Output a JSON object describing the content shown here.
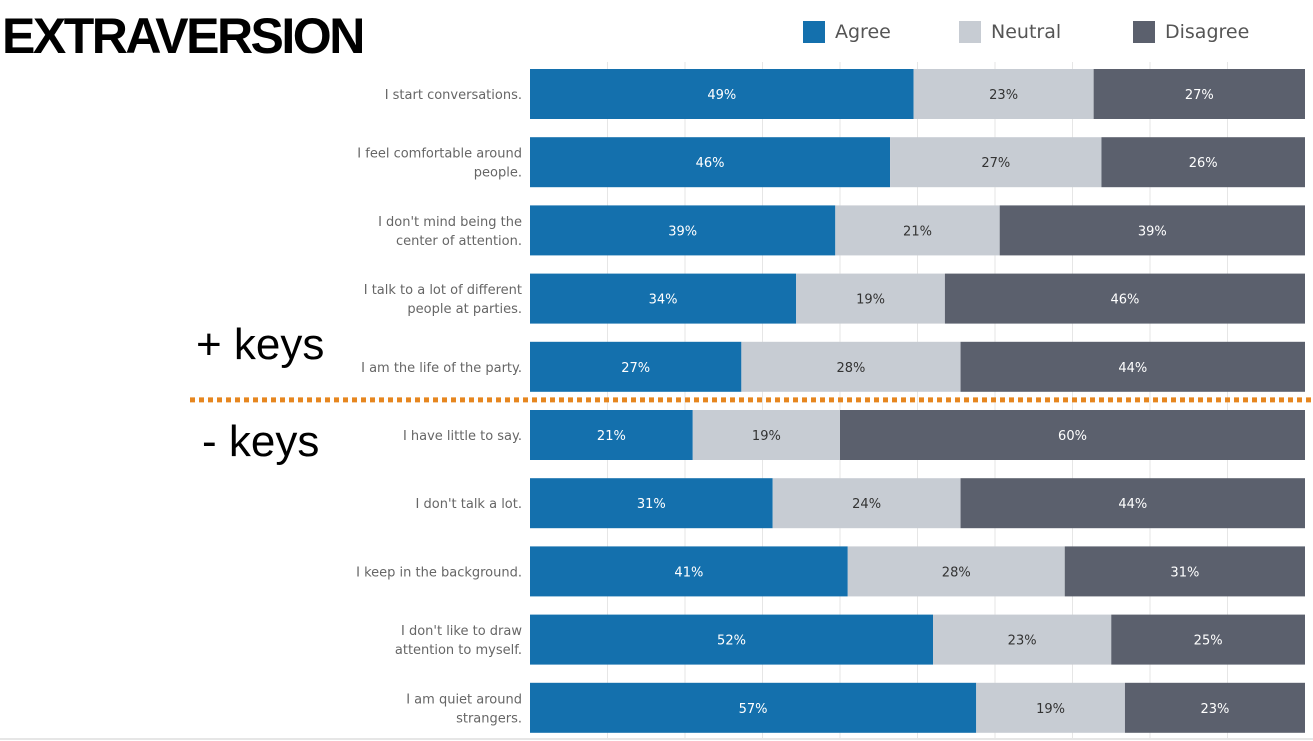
{
  "page": {
    "title": "EXTRAVERSION",
    "plus_keys_label": "+ keys",
    "minus_keys_label": "- keys"
  },
  "colors": {
    "agree": "#1470ad",
    "neutral": "#c7ccd3",
    "disagree": "#5b606d",
    "divider": "#e6861f",
    "gridline": "#e6e6e6"
  },
  "chart_data": {
    "type": "bar",
    "orientation": "horizontal",
    "stacked": "100%",
    "categories": [
      [
        "I start conversations."
      ],
      [
        "I feel comfortable around",
        "people."
      ],
      [
        "I don't mind being the",
        "center of attention."
      ],
      [
        "I talk to a lot of different",
        "people at parties."
      ],
      [
        "I am the life of the party."
      ],
      [
        "I have little to say."
      ],
      [
        "I don't talk a lot."
      ],
      [
        "I keep in the background."
      ],
      [
        "I don't like to draw",
        "attention to myself."
      ],
      [
        "I am quiet around",
        "strangers."
      ]
    ],
    "series": [
      {
        "name": "Agree",
        "values": [
          49,
          46,
          39,
          34,
          27,
          21,
          31,
          41,
          52,
          57
        ]
      },
      {
        "name": "Neutral",
        "values": [
          23,
          27,
          21,
          19,
          28,
          19,
          24,
          28,
          23,
          19
        ]
      },
      {
        "name": "Disagree",
        "values": [
          27,
          26,
          39,
          46,
          44,
          60,
          44,
          31,
          25,
          23
        ]
      }
    ],
    "value_suffix": "%",
    "legend_position": "top-right",
    "grid": true,
    "groups": [
      {
        "label": "+ keys",
        "first": 0,
        "last": 4
      },
      {
        "label": "- keys",
        "first": 5,
        "last": 9
      }
    ]
  }
}
